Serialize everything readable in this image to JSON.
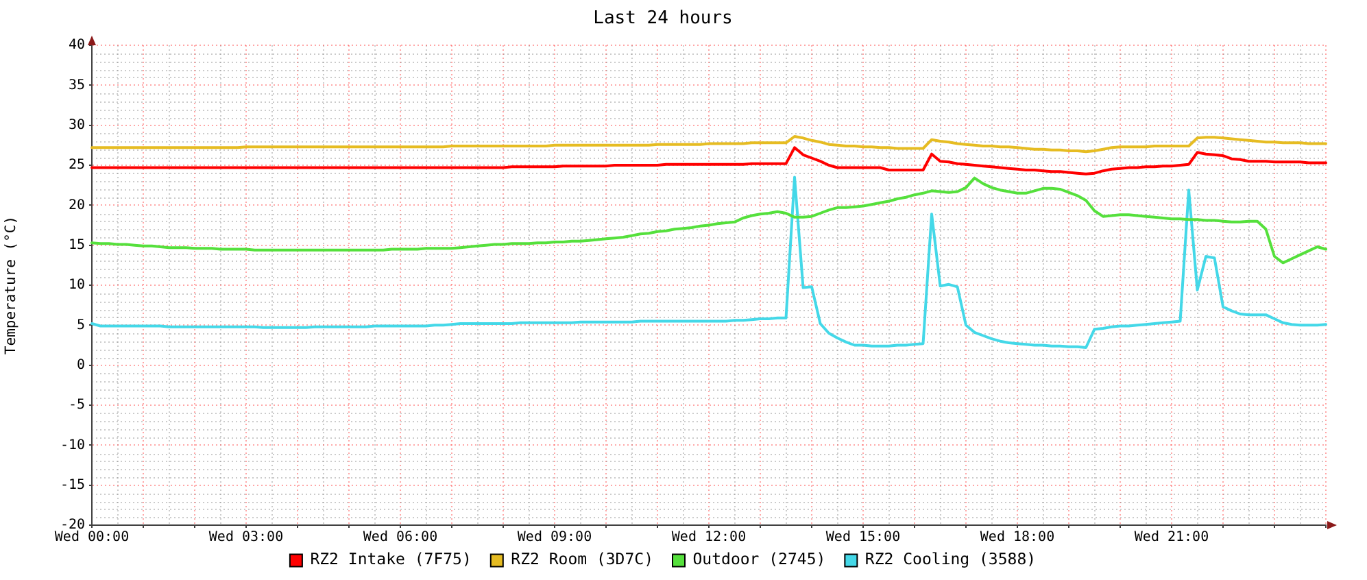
{
  "chart_data": {
    "type": "line",
    "title": "Last 24 hours",
    "ylabel": "Temperature (°C)",
    "categories": [
      "Wed 00:00",
      null,
      null,
      null,
      null,
      null,
      null,
      null,
      null,
      null,
      null,
      null,
      null,
      null,
      null,
      null,
      null,
      null,
      "Wed 03:00",
      null,
      null,
      null,
      null,
      null,
      null,
      null,
      null,
      null,
      null,
      null,
      null,
      null,
      null,
      null,
      null,
      null,
      "Wed 06:00",
      null,
      null,
      null,
      null,
      null,
      null,
      null,
      null,
      null,
      null,
      null,
      null,
      null,
      null,
      null,
      null,
      null,
      "Wed 09:00",
      null,
      null,
      null,
      null,
      null,
      null,
      null,
      null,
      null,
      null,
      null,
      null,
      null,
      null,
      null,
      null,
      null,
      "Wed 12:00",
      null,
      null,
      null,
      null,
      null,
      null,
      null,
      null,
      null,
      null,
      null,
      null,
      null,
      null,
      null,
      null,
      null,
      "Wed 15:00",
      null,
      null,
      null,
      null,
      null,
      null,
      null,
      null,
      null,
      null,
      null,
      null,
      null,
      null,
      null,
      null,
      null,
      "Wed 18:00",
      null,
      null,
      null,
      null,
      null,
      null,
      null,
      null,
      null,
      null,
      null,
      null,
      null,
      null,
      null,
      null,
      null,
      "Wed 21:00",
      null,
      null,
      null,
      null,
      null,
      null,
      null,
      null,
      null,
      null,
      null,
      null,
      null,
      null,
      null,
      null,
      null,
      null
    ],
    "ylim": [
      -20,
      40
    ],
    "yticks": [
      -20,
      -15,
      -10,
      -5,
      0,
      5,
      10,
      15,
      20,
      25,
      30,
      35,
      40
    ],
    "grid": true,
    "legend": "bottom",
    "series": [
      {
        "name": "RZ2 Intake (7F75)",
        "color": "#ff0000",
        "values": [
          24.7,
          24.7,
          24.7,
          24.7,
          24.7,
          24.7,
          24.7,
          24.7,
          24.7,
          24.7,
          24.7,
          24.7,
          24.7,
          24.7,
          24.7,
          24.7,
          24.7,
          24.7,
          24.7,
          24.7,
          24.7,
          24.7,
          24.7,
          24.7,
          24.7,
          24.7,
          24.7,
          24.7,
          24.7,
          24.7,
          24.7,
          24.7,
          24.7,
          24.7,
          24.7,
          24.7,
          24.7,
          24.7,
          24.7,
          24.7,
          24.7,
          24.7,
          24.7,
          24.7,
          24.7,
          24.7,
          24.7,
          24.7,
          24.7,
          24.8,
          24.8,
          24.8,
          24.8,
          24.8,
          24.8,
          24.9,
          24.9,
          24.9,
          24.9,
          24.9,
          24.9,
          25.0,
          25.0,
          25.0,
          25.0,
          25.0,
          25.0,
          25.1,
          25.1,
          25.1,
          25.1,
          25.1,
          25.1,
          25.1,
          25.1,
          25.1,
          25.1,
          25.2,
          25.2,
          25.2,
          25.2,
          25.2,
          27.2,
          26.3,
          25.9,
          25.5,
          25.0,
          24.7,
          24.7,
          24.7,
          24.7,
          24.7,
          24.7,
          24.4,
          24.4,
          24.4,
          24.4,
          24.4,
          26.4,
          25.5,
          25.4,
          25.2,
          25.1,
          25.0,
          24.9,
          24.8,
          24.7,
          24.6,
          24.5,
          24.4,
          24.4,
          24.3,
          24.2,
          24.2,
          24.1,
          24.0,
          23.9,
          24.0,
          24.3,
          24.5,
          24.6,
          24.7,
          24.7,
          24.8,
          24.8,
          24.9,
          24.9,
          25.0,
          25.1,
          26.6,
          26.4,
          26.3,
          26.2,
          25.8,
          25.7,
          25.5,
          25.5,
          25.5,
          25.4,
          25.4,
          25.4,
          25.4,
          25.3,
          25.3,
          25.3
        ]
      },
      {
        "name": "RZ2 Room (3D7C)",
        "color": "#e6bc22",
        "values": [
          27.2,
          27.2,
          27.2,
          27.2,
          27.2,
          27.2,
          27.2,
          27.2,
          27.2,
          27.2,
          27.2,
          27.2,
          27.2,
          27.2,
          27.2,
          27.2,
          27.2,
          27.2,
          27.3,
          27.3,
          27.3,
          27.3,
          27.3,
          27.3,
          27.3,
          27.3,
          27.3,
          27.3,
          27.3,
          27.3,
          27.3,
          27.3,
          27.3,
          27.3,
          27.3,
          27.3,
          27.3,
          27.3,
          27.3,
          27.3,
          27.3,
          27.3,
          27.4,
          27.4,
          27.4,
          27.4,
          27.4,
          27.4,
          27.4,
          27.4,
          27.4,
          27.4,
          27.4,
          27.4,
          27.5,
          27.5,
          27.5,
          27.5,
          27.5,
          27.5,
          27.5,
          27.5,
          27.5,
          27.5,
          27.5,
          27.5,
          27.6,
          27.6,
          27.6,
          27.6,
          27.6,
          27.6,
          27.7,
          27.7,
          27.7,
          27.7,
          27.7,
          27.8,
          27.8,
          27.8,
          27.8,
          27.8,
          28.6,
          28.4,
          28.1,
          27.9,
          27.6,
          27.5,
          27.4,
          27.4,
          27.3,
          27.3,
          27.2,
          27.2,
          27.1,
          27.1,
          27.1,
          27.1,
          28.2,
          28.0,
          27.9,
          27.7,
          27.6,
          27.5,
          27.4,
          27.4,
          27.3,
          27.3,
          27.2,
          27.1,
          27.0,
          27.0,
          26.9,
          26.9,
          26.8,
          26.8,
          26.7,
          26.8,
          27.0,
          27.2,
          27.3,
          27.3,
          27.3,
          27.3,
          27.4,
          27.4,
          27.4,
          27.4,
          27.4,
          28.4,
          28.5,
          28.5,
          28.4,
          28.3,
          28.2,
          28.1,
          28.0,
          27.9,
          27.9,
          27.8,
          27.8,
          27.8,
          27.7,
          27.7,
          27.7
        ]
      },
      {
        "name": "Outdoor (2745)",
        "color": "#55e03c",
        "values": [
          15.3,
          15.2,
          15.2,
          15.1,
          15.1,
          15.0,
          14.9,
          14.9,
          14.8,
          14.7,
          14.7,
          14.7,
          14.6,
          14.6,
          14.6,
          14.5,
          14.5,
          14.5,
          14.5,
          14.4,
          14.4,
          14.4,
          14.4,
          14.4,
          14.4,
          14.4,
          14.4,
          14.4,
          14.4,
          14.4,
          14.4,
          14.4,
          14.4,
          14.4,
          14.4,
          14.5,
          14.5,
          14.5,
          14.5,
          14.6,
          14.6,
          14.6,
          14.6,
          14.7,
          14.8,
          14.9,
          15.0,
          15.1,
          15.1,
          15.2,
          15.2,
          15.2,
          15.3,
          15.3,
          15.4,
          15.4,
          15.5,
          15.5,
          15.6,
          15.7,
          15.8,
          15.9,
          16.0,
          16.2,
          16.4,
          16.5,
          16.7,
          16.8,
          17.0,
          17.1,
          17.2,
          17.4,
          17.5,
          17.7,
          17.8,
          17.9,
          18.4,
          18.7,
          18.9,
          19.0,
          19.2,
          19.0,
          18.5,
          18.5,
          18.6,
          19.0,
          19.4,
          19.7,
          19.7,
          19.8,
          19.9,
          20.1,
          20.3,
          20.5,
          20.8,
          21.0,
          21.3,
          21.5,
          21.8,
          21.7,
          21.6,
          21.7,
          22.2,
          23.4,
          22.7,
          22.2,
          21.9,
          21.7,
          21.5,
          21.5,
          21.8,
          22.1,
          22.1,
          22.0,
          21.6,
          21.2,
          20.6,
          19.3,
          18.6,
          18.7,
          18.8,
          18.8,
          18.7,
          18.6,
          18.5,
          18.4,
          18.3,
          18.3,
          18.2,
          18.2,
          18.1,
          18.1,
          18.0,
          17.9,
          17.9,
          18.0,
          18.0,
          17.0,
          13.6,
          12.8,
          13.3,
          13.8,
          14.3,
          14.8,
          14.5
        ]
      },
      {
        "name": "RZ2 Cooling (3588)",
        "color": "#44d8e8",
        "values": [
          5.2,
          4.9,
          4.9,
          4.9,
          4.9,
          4.9,
          4.9,
          4.9,
          4.9,
          4.8,
          4.8,
          4.8,
          4.8,
          4.8,
          4.8,
          4.8,
          4.8,
          4.8,
          4.8,
          4.8,
          4.7,
          4.7,
          4.7,
          4.7,
          4.7,
          4.7,
          4.8,
          4.8,
          4.8,
          4.8,
          4.8,
          4.8,
          4.8,
          4.9,
          4.9,
          4.9,
          4.9,
          4.9,
          4.9,
          4.9,
          5.0,
          5.0,
          5.1,
          5.2,
          5.2,
          5.2,
          5.2,
          5.2,
          5.2,
          5.2,
          5.3,
          5.3,
          5.3,
          5.3,
          5.3,
          5.3,
          5.3,
          5.4,
          5.4,
          5.4,
          5.4,
          5.4,
          5.4,
          5.4,
          5.5,
          5.5,
          5.5,
          5.5,
          5.5,
          5.5,
          5.5,
          5.5,
          5.5,
          5.5,
          5.5,
          5.6,
          5.6,
          5.7,
          5.8,
          5.8,
          5.9,
          5.9,
          23.5,
          9.7,
          9.8,
          5.2,
          4.0,
          3.4,
          2.9,
          2.5,
          2.5,
          2.4,
          2.4,
          2.4,
          2.5,
          2.5,
          2.6,
          2.7,
          18.9,
          9.9,
          10.1,
          9.8,
          5.0,
          4.1,
          3.7,
          3.3,
          3.0,
          2.8,
          2.7,
          2.6,
          2.5,
          2.5,
          2.4,
          2.4,
          2.3,
          2.3,
          2.2,
          4.5,
          4.6,
          4.8,
          4.9,
          4.9,
          5.0,
          5.1,
          5.2,
          5.3,
          5.4,
          5.5,
          21.9,
          9.4,
          13.6,
          13.4,
          7.3,
          6.8,
          6.4,
          6.3,
          6.3,
          6.3,
          5.8,
          5.3,
          5.1,
          5.0,
          5.0,
          5.0,
          5.1
        ]
      }
    ]
  }
}
